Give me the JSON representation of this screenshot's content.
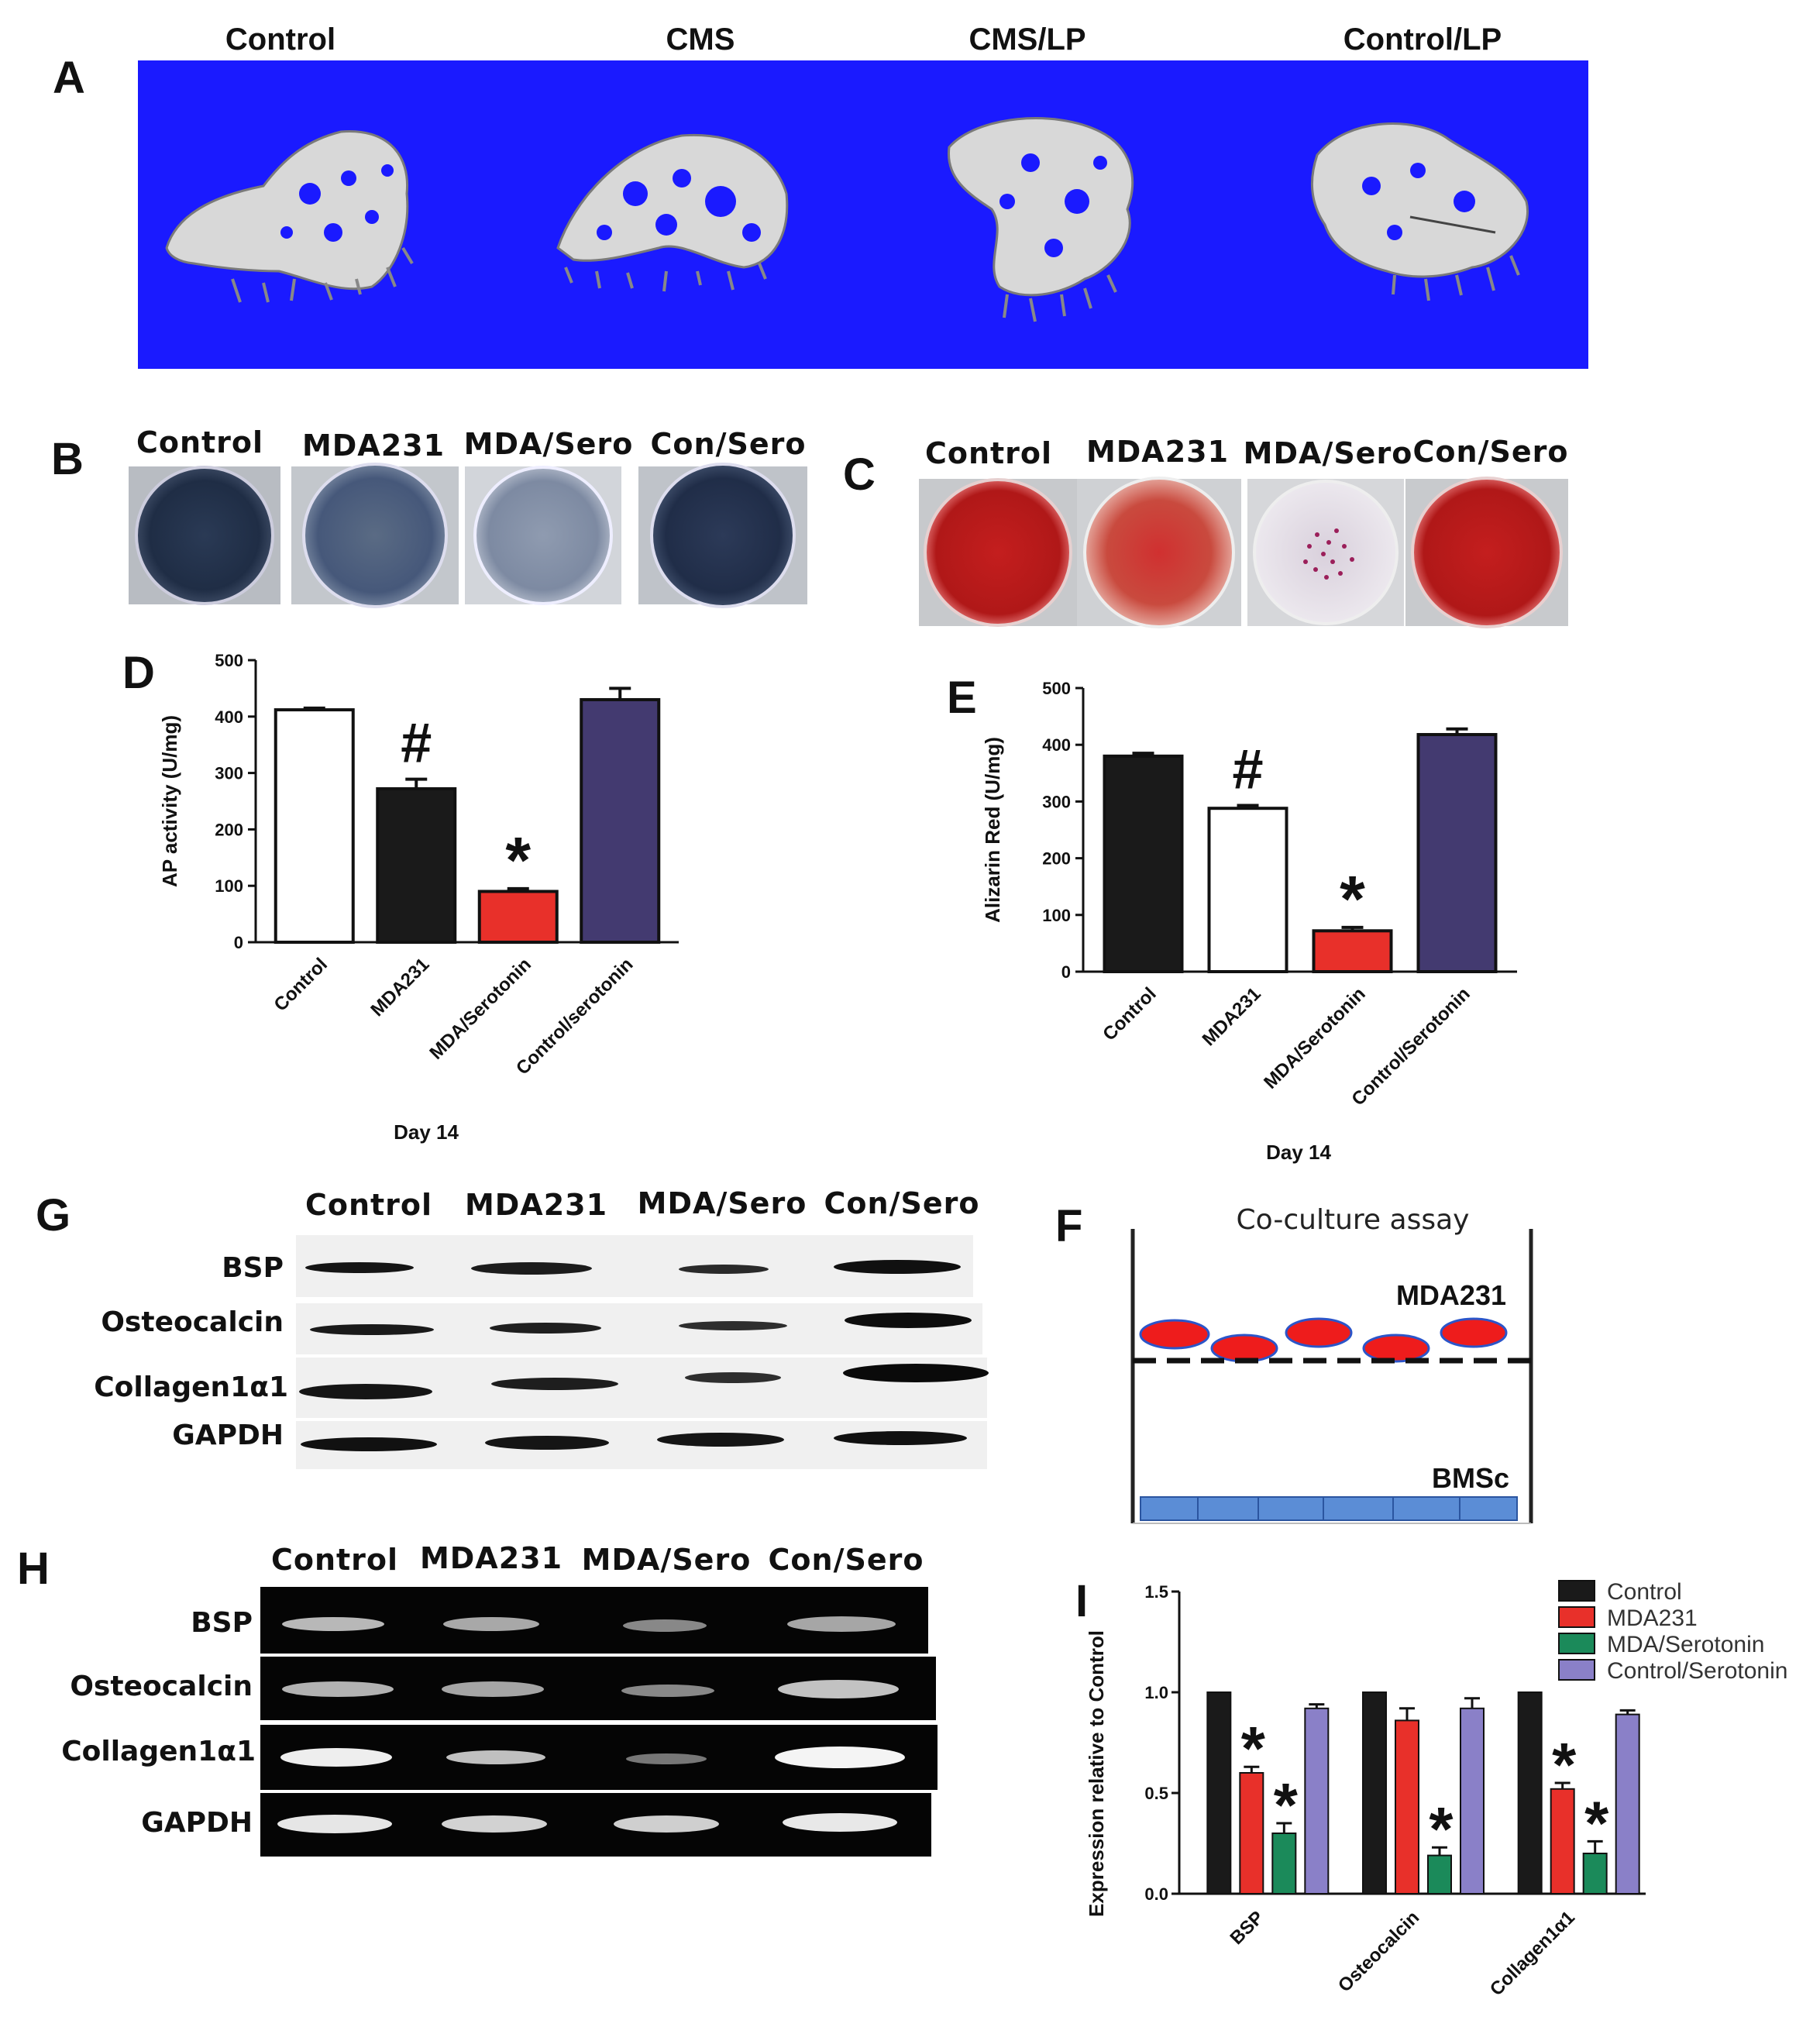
{
  "panels": {
    "A": {
      "letter": "A",
      "labels": [
        "Control",
        "CMS",
        "CMS/LP",
        "Control/LP"
      ],
      "background": "#1a1aff"
    },
    "B": {
      "letter": "B",
      "labels": [
        "Control",
        "MDA231",
        "MDA/Sero",
        "Con/Sero"
      ]
    },
    "C": {
      "letter": "C",
      "labels": [
        "Control",
        "MDA231",
        "MDA/Sero",
        "Con/Sero"
      ]
    },
    "F": {
      "letter": "F",
      "title": "Co-culture assay",
      "top_label": "MDA231",
      "bottom_label": "BMSc"
    },
    "G": {
      "letter": "G",
      "columns": [
        "Control",
        "MDA231",
        "MDA/Sero",
        "Con/Sero"
      ],
      "rows": [
        "BSP",
        "Osteocalcin",
        "Collagen1α1",
        "GAPDH"
      ]
    },
    "H": {
      "letter": "H",
      "columns": [
        "Control",
        "MDA231",
        "MDA/Sero",
        "Con/Sero"
      ],
      "rows": [
        "BSP",
        "Osteocalcin",
        "Collagen1α1",
        "GAPDH"
      ]
    }
  },
  "colors": {
    "black": "#1a1a1a",
    "white": "#ffffff",
    "red": "#e8302a",
    "navy": "#433a70",
    "green": "#1b8a5a",
    "lavender": "#8a80c8",
    "cell_red": "#ee1c1c",
    "cell_outline": "#2b55c9",
    "bmsc_blue": "#5b8dd6"
  },
  "chart_data": [
    {
      "id": "D",
      "letter": "D",
      "type": "bar",
      "categories": [
        "Control",
        "MDA231",
        "MDA/Serotonin",
        "Control/serotonin"
      ],
      "values": [
        412,
        272,
        90,
        430
      ],
      "errors": [
        3,
        17,
        5,
        20
      ],
      "bar_colors": [
        "#ffffff",
        "#1a1a1a",
        "#e8302a",
        "#433a70"
      ],
      "annotations": [
        "",
        "#",
        "*",
        ""
      ],
      "ylabel": "AP activity (U/mg)",
      "xlabel": "Day 14",
      "ylim": [
        0,
        500
      ],
      "yticks": [
        0,
        100,
        200,
        300,
        400,
        500
      ]
    },
    {
      "id": "E",
      "letter": "E",
      "type": "bar",
      "categories": [
        "Control",
        "MDA231",
        "MDA/Serotonin",
        "Control/Serotonin"
      ],
      "values": [
        380,
        288,
        72,
        418
      ],
      "errors": [
        5,
        5,
        6,
        10
      ],
      "bar_colors": [
        "#1a1a1a",
        "#ffffff",
        "#e8302a",
        "#433a70"
      ],
      "annotations": [
        "",
        "#",
        "*",
        ""
      ],
      "ylabel": "Alizarin Red (U/mg)",
      "xlabel": "Day 14",
      "ylim": [
        0,
        500
      ],
      "yticks": [
        0,
        100,
        200,
        300,
        400,
        500
      ]
    },
    {
      "id": "I",
      "letter": "I",
      "type": "bar",
      "categories": [
        "BSP",
        "Osteocalcin",
        "Collagen1α1"
      ],
      "series": [
        {
          "name": "Control",
          "color": "#1a1a1a",
          "values": [
            1.0,
            1.0,
            1.0
          ],
          "errors": [
            0,
            0,
            0
          ],
          "annotations": [
            "",
            "",
            ""
          ]
        },
        {
          "name": "MDA231",
          "color": "#e8302a",
          "values": [
            0.6,
            0.86,
            0.52
          ],
          "errors": [
            0.03,
            0.06,
            0.03
          ],
          "annotations": [
            "*",
            "",
            "*"
          ]
        },
        {
          "name": "MDA/Serotonin",
          "color": "#1b8a5a",
          "values": [
            0.3,
            0.19,
            0.2
          ],
          "errors": [
            0.05,
            0.04,
            0.06
          ],
          "annotations": [
            "*",
            "*",
            "*"
          ]
        },
        {
          "name": "Control/Serotonin",
          "color": "#8a80c8",
          "values": [
            0.92,
            0.92,
            0.89
          ],
          "errors": [
            0.02,
            0.05,
            0.02
          ],
          "annotations": [
            "",
            "",
            ""
          ]
        }
      ],
      "ylabel": "Expression relative to Control",
      "ylim": [
        0,
        1.5
      ],
      "yticks": [
        "0.0",
        "0.5",
        "1.0",
        "1.5"
      ],
      "legend": "top-right"
    }
  ]
}
